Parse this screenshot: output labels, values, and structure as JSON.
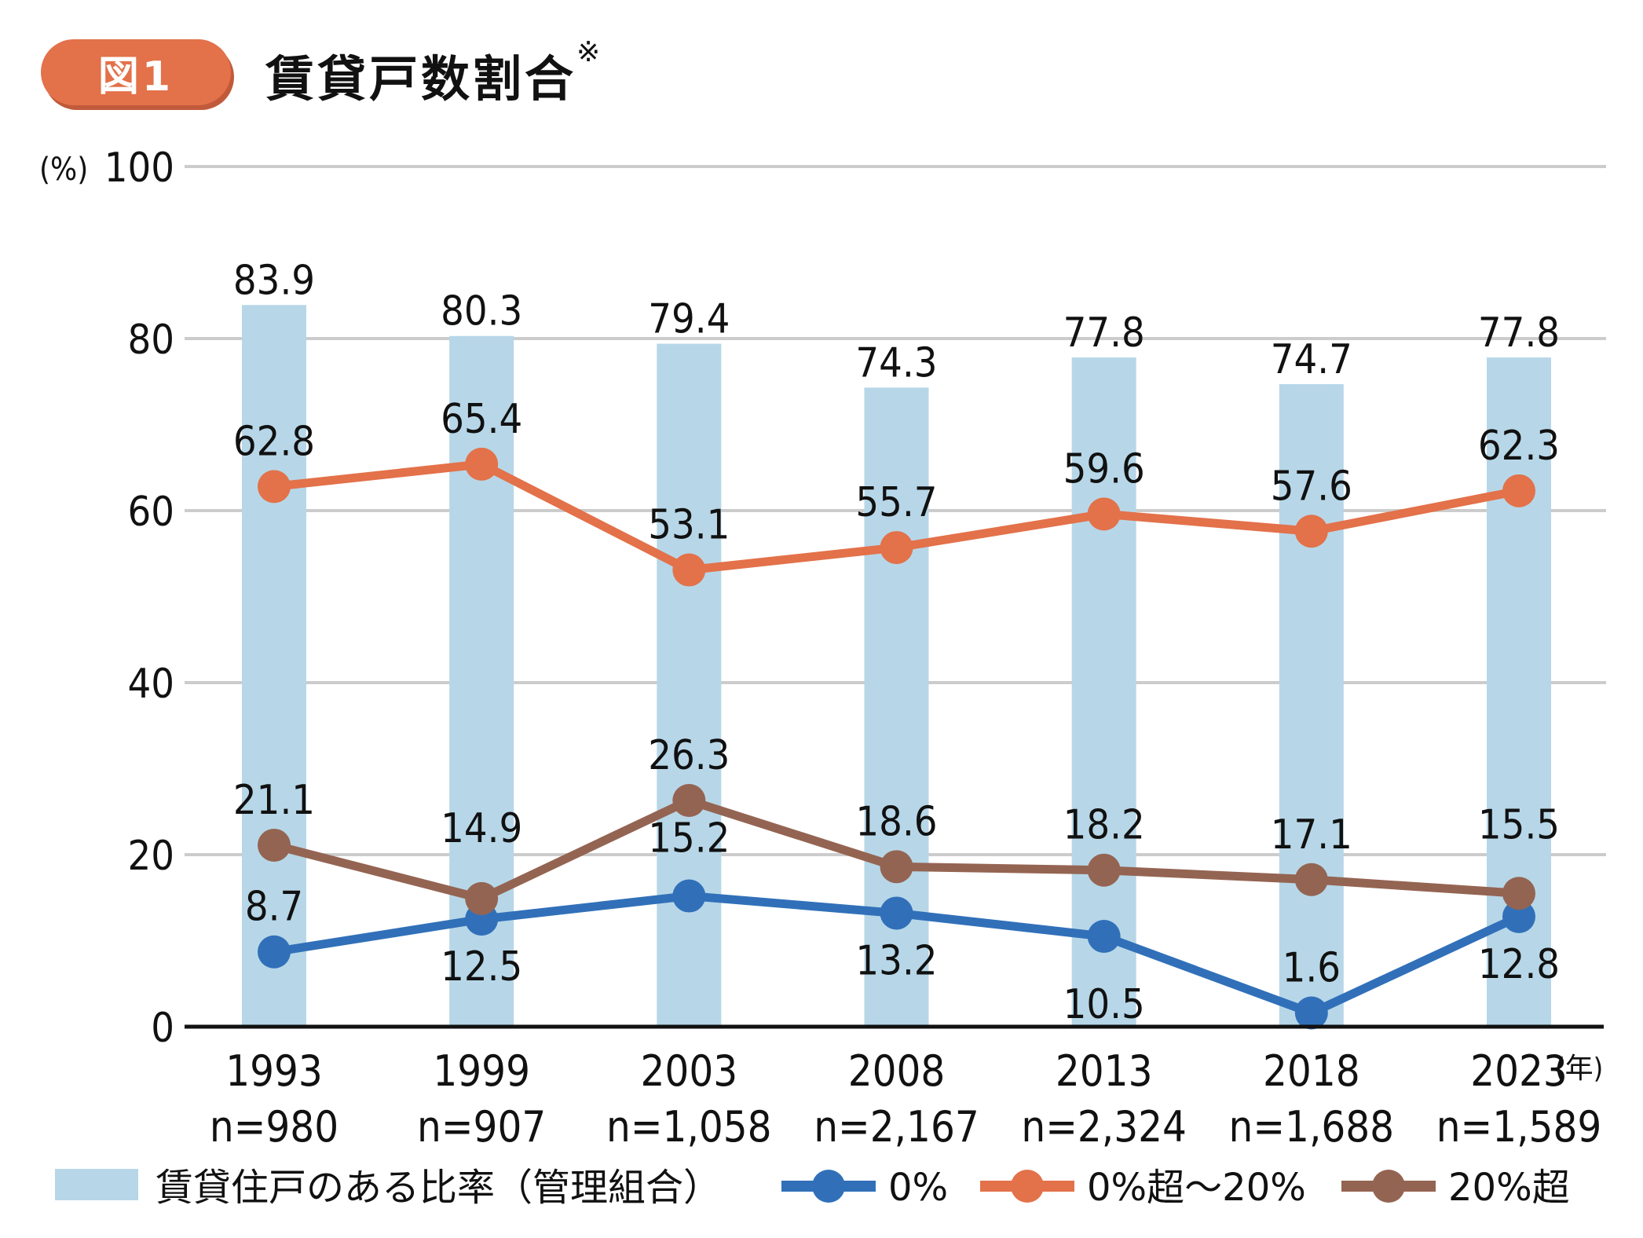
{
  "header": {
    "badge": "図1",
    "title": "賃貸戸数割合",
    "title_mark": "※"
  },
  "colors": {
    "bar": "#b7d7e8",
    "zero": "#3170b9",
    "mid": "#e3714a",
    "high": "#946452",
    "grid": "#cccccc",
    "axis": "#111111",
    "badge": "#e3714a"
  },
  "chart_data": {
    "type": "bar+line",
    "title": "賃貸戸数割合※",
    "ylabel": "(%)",
    "ylim": [
      0,
      100
    ],
    "yticks": [
      "0",
      "20",
      "40",
      "60",
      "80",
      "100"
    ],
    "x_unit": "(年)",
    "grid": true,
    "legend_position": "bottom",
    "categories": [
      "1993",
      "1999",
      "2003",
      "2008",
      "2013",
      "2018",
      "2023"
    ],
    "n_labels": [
      "n=980",
      "n=907",
      "n=1,058",
      "n=2,167",
      "n=2,324",
      "n=1,688",
      "n=1,589"
    ],
    "series": [
      {
        "name": "賃貸住戸のある比率（管理組合）",
        "kind": "bar",
        "values": [
          83.9,
          80.3,
          79.4,
          74.3,
          77.8,
          74.7,
          77.8
        ],
        "labels": [
          "83.9",
          "80.3",
          "79.4",
          "74.3",
          "77.8",
          "74.7",
          "77.8"
        ]
      },
      {
        "name": "0%",
        "kind": "line",
        "values": [
          8.7,
          12.5,
          15.2,
          13.2,
          10.5,
          1.6,
          12.8
        ],
        "labels": [
          "8.7",
          "12.5",
          "15.2",
          "13.2",
          "10.5",
          "1.6",
          "12.8"
        ]
      },
      {
        "name": "0%超～20%",
        "kind": "line",
        "values": [
          62.8,
          65.4,
          53.1,
          55.7,
          59.6,
          57.6,
          62.3
        ],
        "labels": [
          "62.8",
          "65.4",
          "53.1",
          "55.7",
          "59.6",
          "57.6",
          "62.3"
        ]
      },
      {
        "name": "20%超",
        "kind": "line",
        "values": [
          21.1,
          14.9,
          26.3,
          18.6,
          18.2,
          17.1,
          15.5
        ],
        "labels": [
          "21.1",
          "14.9",
          "26.3",
          "18.6",
          "18.2",
          "17.1",
          "15.5"
        ]
      }
    ]
  }
}
